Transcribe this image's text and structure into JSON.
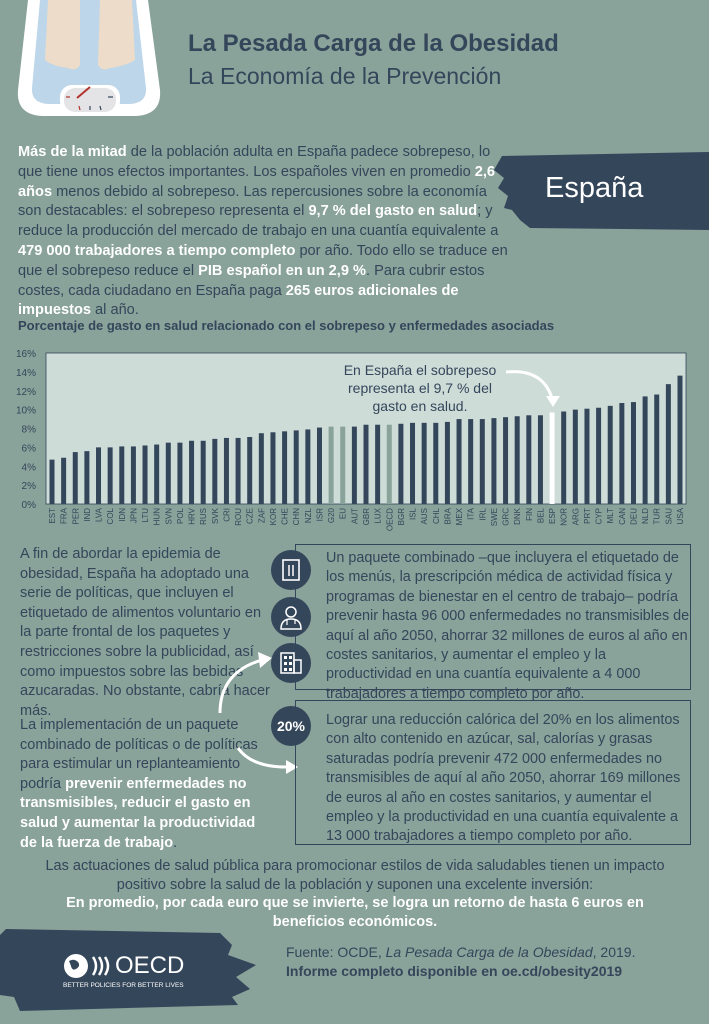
{
  "header": {
    "title": "La Pesada Carga de la Obesidad",
    "subtitle": "La Economía de la Prevención",
    "country": "España"
  },
  "intro": {
    "segments": [
      {
        "text": "Más de la mitad",
        "highlight": true
      },
      {
        "text": " de la población adulta en España padece sobrepeso, lo que tiene unos efectos importantes. Los españoles viven en promedio ",
        "highlight": false
      },
      {
        "text": "2,6 años",
        "highlight": true
      },
      {
        "text": " menos debido al sobrepeso. Las repercusiones sobre la economía son destacables: el sobrepeso representa el ",
        "highlight": false
      },
      {
        "text": "9,7 % del gasto en salud",
        "highlight": true
      },
      {
        "text": "; y reduce la producción del mercado de trabajo en una cuantía equivalente a ",
        "highlight": false
      },
      {
        "text": "479 000 trabajadores a tiempo completo",
        "highlight": true
      },
      {
        "text": " por año. Todo ello se traduce en que el sobrepeso reduce el ",
        "highlight": false
      },
      {
        "text": "PIB español en un 2,9 %",
        "highlight": true
      },
      {
        "text": ". Para cubrir estos costes, cada ciudadano en España paga ",
        "highlight": false
      },
      {
        "text": "265 euros adicionales de impuestos",
        "highlight": true
      },
      {
        "text": " al año.",
        "highlight": false
      }
    ]
  },
  "chart_data": {
    "type": "bar",
    "title": "Porcentaje de gasto en salud relacionado con el sobrepeso y enfermedades asociadas",
    "ylim": [
      0,
      16
    ],
    "yticks": [
      "0%",
      "2%",
      "4%",
      "6%",
      "8%",
      "10%",
      "12%",
      "14%",
      "16%"
    ],
    "grid": false,
    "annotation": "En España el sobrepeso representa el 9,7 % del gasto en salud.",
    "categories": [
      "EST",
      "FRA",
      "PER",
      "IND",
      "LVA",
      "COL",
      "IDN",
      "JPN",
      "LTU",
      "HUN",
      "SVN",
      "POL",
      "HRV",
      "RUS",
      "SVK",
      "CRI",
      "ROU",
      "CZE",
      "ZAF",
      "KOR",
      "CHE",
      "CHN",
      "NZL",
      "ISR",
      "G20",
      "EU",
      "AUT",
      "GBR",
      "LUX",
      "OECD",
      "BGR",
      "ISL",
      "AUS",
      "CHL",
      "BRA",
      "MEX",
      "ITA",
      "IRL",
      "SWE",
      "GRC",
      "DNK",
      "FIN",
      "BEL",
      "ESP",
      "NOR",
      "ARG",
      "PRT",
      "CYP",
      "MLT",
      "CAN",
      "DEU",
      "NLD",
      "TUR",
      "SAU",
      "USA"
    ],
    "values": [
      4.7,
      4.9,
      5.5,
      5.6,
      6.0,
      6.0,
      6.1,
      6.1,
      6.2,
      6.3,
      6.5,
      6.5,
      6.7,
      6.7,
      6.9,
      7.0,
      7.0,
      7.1,
      7.5,
      7.6,
      7.7,
      7.8,
      7.9,
      8.1,
      8.2,
      8.2,
      8.2,
      8.4,
      8.4,
      8.4,
      8.5,
      8.6,
      8.6,
      8.6,
      8.7,
      9.0,
      9.0,
      9.0,
      9.1,
      9.2,
      9.3,
      9.4,
      9.4,
      9.7,
      9.8,
      10.0,
      10.1,
      10.2,
      10.4,
      10.7,
      10.8,
      11.4,
      11.6,
      12.7,
      13.6
    ],
    "colors": {
      "default": "#34465a",
      "aggregate": "#89a29a",
      "highlight": "#ffffff"
    },
    "aggregates": [
      "G20",
      "EU",
      "OECD"
    ],
    "highlighted": "ESP"
  },
  "left": {
    "para1": "A fin de abordar la epidemia de obesidad, España ha adoptado una serie de políticas, que incluyen el etiquetado de alimentos voluntario en la parte frontal de los paquetes y restricciones sobre la publicidad, así como impuestos sobre las bebidas azucaradas. No obstante, cabría hacer más.",
    "para2_plain": "La implementación de un paquete combinado de políticas o de políticas para estimular un replanteamiento podría ",
    "para2_bold": "prevenir enfermedades no transmisibles, reducir el gasto en salud y aumentar la productividad de la fuerza de trabajo",
    "para2_end": "."
  },
  "boxes": {
    "box1": "Un paquete combinado –que incluyera el etiquetado de los menús, la prescripción médica de actividad física y programas de bienestar en el centro de trabajo– podría prevenir hasta 96 000 enfermedades no transmisibles de aquí al año 2050, ahorrar 32 millones de euros al año en costes sanitarios, y aumentar el empleo y la productividad en una cuantía equivalente a 4 000 trabajadores a tiempo completo por año.",
    "box1_icons": [
      "menu-icon",
      "doctor-icon",
      "office-building-icon"
    ],
    "box2_badge": "20%",
    "box2": "Lograr una reducción calórica del 20% en los alimentos con alto contenido en azúcar, sal, calorías y grasas saturadas podría prevenir 472 000 enfermedades no transmisibles de aquí al año 2050, ahorrar 169 millones de euros al año en costes sanitarios, y aumentar el empleo y la productividad en una cuantía equivalente a 13 000 trabajadores a tiempo completo por año."
  },
  "closing": {
    "text": "Las actuaciones de salud pública para promocionar estilos de vida saludables tienen un impacto positivo sobre la salud de la población y suponen una excelente inversión:",
    "bold": "En promedio, por cada euro que se invierte, se logra un retorno de hasta 6 euros en beneficios económicos."
  },
  "footer": {
    "logo_text": "OECD",
    "logo_tagline": "BETTER POLICIES FOR BETTER LIVES",
    "source_prefix": "Fuente: OCDE, ",
    "source_title": "La Pesada Carga de la Obesidad",
    "source_suffix": ", 2019.",
    "report_link": "Informe completo disponible en oe.cd/obesity2019"
  }
}
